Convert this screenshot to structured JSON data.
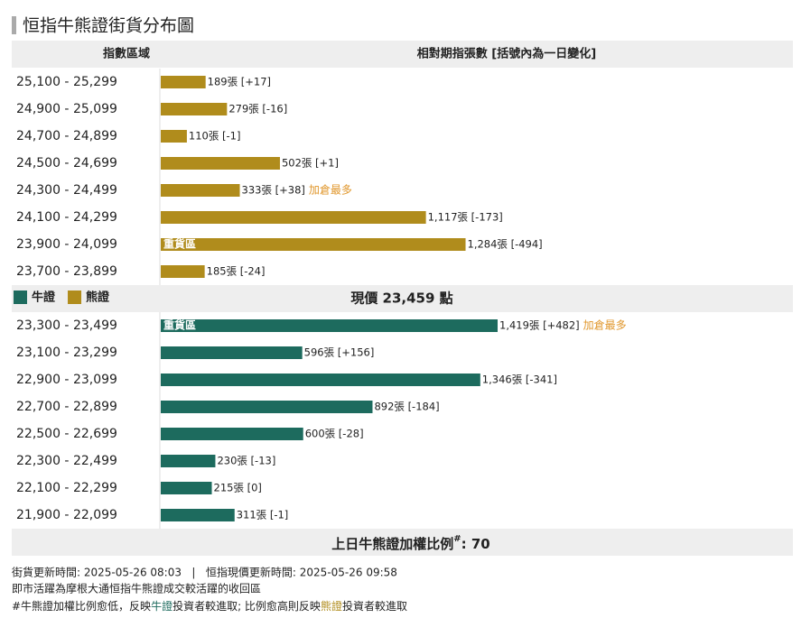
{
  "title": "恒指牛熊證街貨分布圖",
  "table": {
    "headers": [
      "指數區域",
      "相對期指張數 [括號內為一日變化]"
    ]
  },
  "chart_data": {
    "type": "bar",
    "orientation": "horizontal",
    "series": [
      {
        "name": "牛證",
        "color": "#1d6b5e",
        "categories": [
          "23,300 - 23,499",
          "23,100 - 23,299",
          "22,900 - 23,099",
          "22,700 - 22,899",
          "22,500 - 22,699",
          "22,300 - 22,499",
          "22,100 - 22,299",
          "21,900 - 22,099"
        ],
        "values": [
          1419,
          596,
          1346,
          892,
          600,
          230,
          215,
          311
        ],
        "value_labels": [
          "1,419張 [+482]",
          "596張 [+156]",
          "1,346張 [-341]",
          "892張 [-184]",
          "600張 [-28]",
          "230張 [-13]",
          "215張 [0]",
          "311張 [-1]"
        ],
        "notes": [
          "加倉最多",
          null,
          null,
          null,
          null,
          null,
          null,
          null
        ],
        "zone_labels": [
          "重貨區",
          null,
          null,
          null,
          null,
          null,
          null,
          null
        ]
      },
      {
        "name": "熊證",
        "color": "#b08c1c",
        "categories": [
          "25,100 - 25,299",
          "24,900 - 25,099",
          "24,700 - 24,899",
          "24,500 - 24,699",
          "24,300 - 24,499",
          "24,100 - 24,299",
          "23,900 - 24,099",
          "23,700 - 23,899"
        ],
        "values": [
          189,
          279,
          110,
          502,
          333,
          1117,
          1284,
          185
        ],
        "value_labels": [
          "189張 [+17]",
          "279張 [-16]",
          "110張 [-1]",
          "502張 [+1]",
          "333張 [+38]",
          "1,117張 [-173]",
          "1,284張 [-494]",
          "185張 [-24]"
        ],
        "notes": [
          null,
          null,
          null,
          null,
          "加倉最多",
          null,
          null,
          null
        ],
        "zone_labels": [
          null,
          null,
          null,
          null,
          null,
          null,
          "重貨區",
          null
        ]
      }
    ]
  },
  "price_text": "現價 23,459 點",
  "ratio": {
    "label": "上日牛熊證加權比例",
    "mark": "#",
    "value": ": 70"
  },
  "notes": {
    "line1": "街貨更新時間: 2025-05-26 08:03   |   恒指現價更新時間: 2025-05-26 09:58",
    "line2": "即市活躍為摩根大通恒指牛熊證成交較活躍的收回區",
    "line3": [
      "#牛熊證加權比例愈低，反映",
      "牛證",
      "投資者較進取; 比例愈高則反映",
      "熊證",
      "投資者較進取"
    ]
  }
}
